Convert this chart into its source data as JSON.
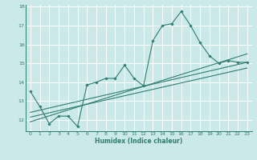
{
  "xlabel": "Humidex (Indice chaleur)",
  "bg_color": "#cce9e9",
  "grid_color": "#ffffff",
  "line_color": "#2e7d6e",
  "xlim": [
    -0.5,
    23.5
  ],
  "ylim": [
    11.4,
    18.1
  ],
  "xticks": [
    0,
    1,
    2,
    3,
    4,
    5,
    6,
    7,
    8,
    9,
    10,
    11,
    12,
    13,
    14,
    15,
    16,
    17,
    18,
    19,
    20,
    21,
    22,
    23
  ],
  "yticks": [
    12,
    13,
    14,
    15,
    16,
    17,
    18
  ],
  "series1_x": [
    0,
    1,
    2,
    3,
    4,
    5,
    6,
    7,
    8,
    9,
    10,
    11,
    12,
    13,
    14,
    15,
    16,
    17,
    18,
    19,
    20,
    21,
    22,
    23
  ],
  "series1_y": [
    13.5,
    12.7,
    11.8,
    12.2,
    12.2,
    11.65,
    13.85,
    14.0,
    14.2,
    14.2,
    14.9,
    14.2,
    13.8,
    16.2,
    17.0,
    17.1,
    17.75,
    17.0,
    16.1,
    15.4,
    15.0,
    15.15,
    15.05,
    15.05
  ],
  "series2_x": [
    0,
    23
  ],
  "series2_y": [
    11.9,
    15.5
  ],
  "series3_x": [
    0,
    23
  ],
  "series3_y": [
    12.4,
    15.05
  ],
  "series4_x": [
    0,
    23
  ],
  "series4_y": [
    12.15,
    14.75
  ]
}
